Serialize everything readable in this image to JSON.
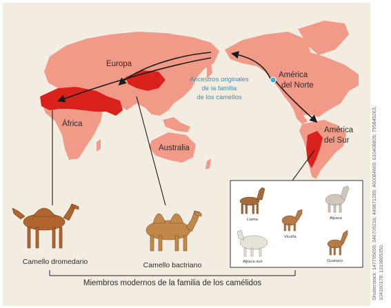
{
  "map": {
    "regions": {
      "europe": "Europa",
      "africa": "África",
      "north_america_line1": "América",
      "north_america_line2": "del Norte",
      "south_america_line1": "América",
      "south_america_line2": "del Sur",
      "australia": "Australia"
    },
    "origin_label": [
      "Ancestros originales",
      "de la familia",
      "de los camellos"
    ],
    "colors": {
      "land": "#f19a88",
      "range": "#d9221c",
      "ocean": "#f3ede1",
      "origin_marker": "#36a9d6",
      "route": "#1a1a1a"
    }
  },
  "animals": {
    "dromedary": "Camello dromedario",
    "bactrian": "Camello bactriano"
  },
  "south_american_inset": {
    "llama": "Llama",
    "alpaca": "Alpaca",
    "vicuna": "Vicuña",
    "alpaca_suri": "Alpaca suri",
    "guanaco": "Guanaco"
  },
  "caption": "Miembros modernos de la familia de los camélidos",
  "credit": [
    "Shutterstock: 147795699; 346709216; 449871289; 460084669; 610408805; 795845263;",
    "104160178; 1319865350"
  ]
}
